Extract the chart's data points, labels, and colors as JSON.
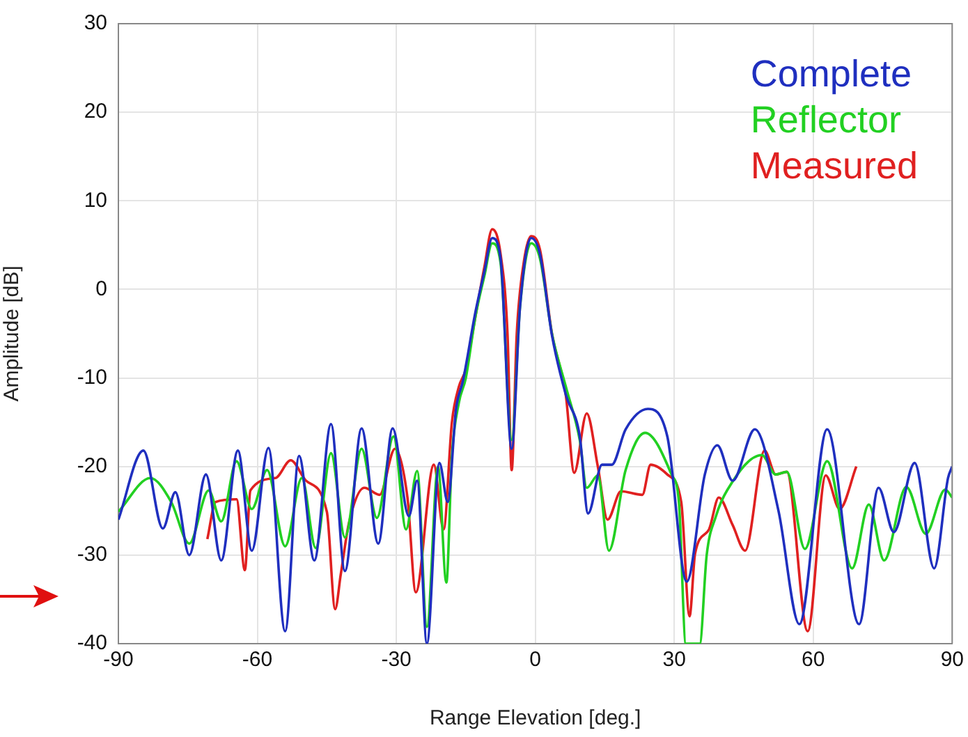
{
  "chart_data": {
    "type": "line",
    "xlabel": "Range Elevation [deg.]",
    "ylabel": "Amplitude [dB]",
    "xlim": [
      -90,
      90
    ],
    "xticks": [
      -90,
      -60,
      -30,
      0,
      30,
      60,
      90
    ],
    "ylim": [
      -40,
      30
    ],
    "yticks": [
      -40,
      -30,
      -20,
      -10,
      0,
      10,
      20,
      30
    ],
    "grid": true,
    "legend": "top right",
    "marker": "none",
    "line_style": "solid",
    "series": [
      {
        "name": "Complete",
        "color": "#1f2fbf",
        "x": [
          -90,
          -84.6,
          -80.4,
          -77.7,
          -74.7,
          -71.1,
          -67.8,
          -64.2,
          -61.2,
          -57.6,
          -54,
          -51,
          -47.7,
          -44.1,
          -41.1,
          -37.5,
          -33.9,
          -30.8,
          -27.3,
          -25.5,
          -23.4,
          -20.7,
          -18.9,
          -17.1,
          -15.6,
          -12.9,
          -11,
          -9.3,
          -7.5,
          -5.1,
          -3.3,
          -0.9,
          1,
          3.6,
          6.6,
          9.6,
          11.4,
          14.4,
          16.5,
          19.5,
          24.3,
          28.5,
          32.7,
          36.6,
          39.3,
          42.6,
          47.4,
          52.5,
          57,
          63,
          69.9,
          74.1,
          77.4,
          81.9,
          86.1,
          89.1,
          90
        ],
        "values": [
          -26,
          -18.2,
          -27,
          -22.9,
          -30,
          -20.9,
          -30.6,
          -18.2,
          -29.5,
          -17.9,
          -38.6,
          -18.8,
          -30.6,
          -15.2,
          -31.8,
          -15.7,
          -28.7,
          -15.7,
          -25.6,
          -21.6,
          -40,
          -19.6,
          -24,
          -13.5,
          -10.3,
          -2.5,
          2,
          5.8,
          3.5,
          -18,
          -2,
          5.8,
          4,
          -5.2,
          -11.9,
          -16.6,
          -25.3,
          -19.8,
          -19.8,
          -15.8,
          -13.5,
          -16.6,
          -33,
          -20.9,
          -17.6,
          -21.6,
          -15.8,
          -25,
          -37.8,
          -15.8,
          -37.8,
          -22.4,
          -27.4,
          -19.6,
          -31.5,
          -21.3,
          -20
        ]
      },
      {
        "name": "Reflector",
        "color": "#22d022",
        "x": [
          -90,
          -83.1,
          -78.6,
          -74.7,
          -70.5,
          -67.8,
          -64.5,
          -61.2,
          -57.9,
          -54,
          -50.4,
          -47.4,
          -44.1,
          -41.1,
          -37.5,
          -34.2,
          -30.6,
          -27.9,
          -25.5,
          -23.4,
          -21,
          -19.2,
          -18,
          -16.5,
          -15,
          -12.9,
          -11,
          -9.3,
          -7.5,
          -5.1,
          -3.3,
          -0.9,
          1,
          3.6,
          6.6,
          9.6,
          11.1,
          13.5,
          15.9,
          19.5,
          23.7,
          29.4,
          31,
          32.5,
          35.5,
          37,
          39,
          41.4,
          48.9,
          51.9,
          54.3,
          58.2,
          63,
          68.4,
          72,
          75.3,
          80.1,
          84.3,
          88.5,
          90
        ],
        "values": [
          -25.1,
          -21.3,
          -24,
          -28.7,
          -22.7,
          -26.2,
          -19.4,
          -24.8,
          -20.4,
          -29,
          -21.3,
          -29.2,
          -18.5,
          -28,
          -18,
          -25.8,
          -16.6,
          -27.1,
          -20.5,
          -38.1,
          -20,
          -33.1,
          -18.8,
          -12.8,
          -10,
          -3,
          1.5,
          5.2,
          3,
          -17,
          -2,
          5.2,
          3.5,
          -5,
          -11,
          -17,
          -22.4,
          -21,
          -29.5,
          -20.4,
          -16.2,
          -20.9,
          -24,
          -40,
          -40,
          -30,
          -25.6,
          -22.7,
          -18.7,
          -20.9,
          -20.6,
          -29.3,
          -19.4,
          -31.5,
          -24.3,
          -30.6,
          -22.3,
          -27.6,
          -22.6,
          -23.5
        ]
      },
      {
        "name": "Measured",
        "color": "#e02020",
        "x": [
          -70.8,
          -69,
          -64.5,
          -62.7,
          -61.5,
          -56.1,
          -52.8,
          -49.5,
          -45,
          -43.2,
          -42,
          -40.2,
          -36.9,
          -33.6,
          -30.3,
          -27.6,
          -25.8,
          -21.9,
          -19.8,
          -18,
          -16.5,
          -15,
          -12.9,
          -11,
          -9.3,
          -7.5,
          -6,
          -5.1,
          -4,
          -2.5,
          -0.9,
          1,
          3.6,
          6.6,
          8.4,
          11.1,
          13.5,
          15.6,
          18.5,
          23.1,
          24.9,
          28.5,
          31.5,
          33.3,
          34.5,
          37.5,
          39.6,
          42.6,
          45.3,
          49.5,
          51.9,
          54.3,
          58.8,
          62.7,
          65.7,
          69.3
        ],
        "values": [
          -28.2,
          -24,
          -23.7,
          -31.7,
          -22.7,
          -21.3,
          -19.3,
          -21.6,
          -25.1,
          -36.1,
          -32.2,
          -26.3,
          -22.4,
          -23.2,
          -18,
          -23.5,
          -34.2,
          -19.8,
          -27.1,
          -15,
          -11,
          -9,
          -3,
          2.5,
          6.8,
          4,
          -5,
          -20.4,
          -5,
          3,
          6,
          4.5,
          -5,
          -12,
          -20.7,
          -14,
          -20,
          -26,
          -22.8,
          -23.2,
          -19.8,
          -20.9,
          -24,
          -36.9,
          -29.8,
          -27.1,
          -23.5,
          -26.6,
          -29.5,
          -18.2,
          -20.9,
          -20.6,
          -38.6,
          -21,
          -24.8,
          -20
        ]
      }
    ]
  }
}
